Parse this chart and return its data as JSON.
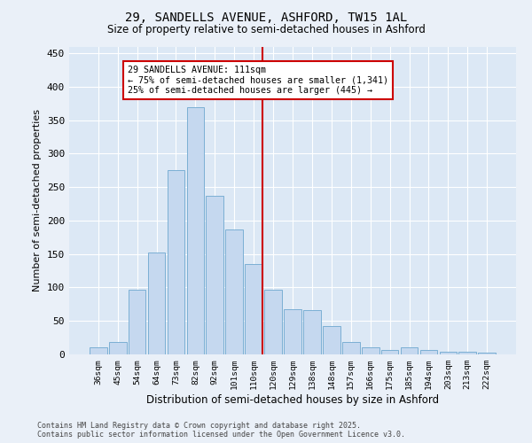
{
  "title_line1": "29, SANDELLS AVENUE, ASHFORD, TW15 1AL",
  "title_line2": "Size of property relative to semi-detached houses in Ashford",
  "xlabel": "Distribution of semi-detached houses by size in Ashford",
  "ylabel": "Number of semi-detached properties",
  "categories": [
    "36sqm",
    "45sqm",
    "54sqm",
    "64sqm",
    "73sqm",
    "82sqm",
    "92sqm",
    "101sqm",
    "110sqm",
    "120sqm",
    "129sqm",
    "138sqm",
    "148sqm",
    "157sqm",
    "166sqm",
    "175sqm",
    "185sqm",
    "194sqm",
    "203sqm",
    "213sqm",
    "222sqm"
  ],
  "values": [
    10,
    19,
    96,
    152,
    275,
    369,
    237,
    187,
    135,
    96,
    67,
    66,
    42,
    19,
    10,
    6,
    11,
    6,
    4,
    4,
    2
  ],
  "bar_color": "#c5d8ef",
  "bar_edge_color": "#7bafd4",
  "vline_color": "#cc0000",
  "annotation_title": "29 SANDELLS AVENUE: 111sqm",
  "annotation_line2": "← 75% of semi-detached houses are smaller (1,341)",
  "annotation_line3": "25% of semi-detached houses are larger (445) →",
  "annotation_box_color": "#cc0000",
  "ylim": [
    0,
    460
  ],
  "yticks": [
    0,
    50,
    100,
    150,
    200,
    250,
    300,
    350,
    400,
    450
  ],
  "footer_line1": "Contains HM Land Registry data © Crown copyright and database right 2025.",
  "footer_line2": "Contains public sector information licensed under the Open Government Licence v3.0.",
  "bg_color": "#eaf0f8",
  "plot_bg_color": "#dce8f5",
  "grid_color": "#ffffff"
}
